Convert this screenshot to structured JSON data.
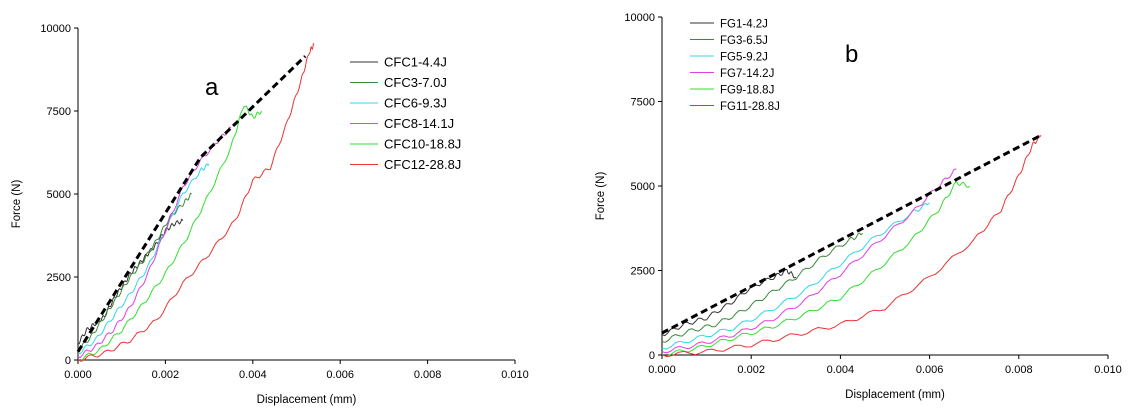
{
  "chart_data": [
    {
      "type": "line",
      "panel_label": "a",
      "xlabel": "Displacement (mm)",
      "ylabel": "Force (N)",
      "xlim": [
        0,
        0.01
      ],
      "ylim": [
        0,
        10000
      ],
      "xticks": [
        "0.000",
        "0.002",
        "0.004",
        "0.006",
        "0.008",
        "0.010"
      ],
      "yticks": [
        "0",
        "2500",
        "5000",
        "7500",
        "10000"
      ],
      "legend_position": "top-right",
      "series": [
        {
          "name": "CFC1-4.4J",
          "color": "#333333",
          "x": [
            0.0,
            0.0002,
            0.0004,
            0.0006,
            0.0008,
            0.001,
            0.0012,
            0.0014,
            0.0016,
            0.0018,
            0.002,
            0.0022,
            0.0024
          ],
          "y": [
            500,
            900,
            1100,
            1300,
            1800,
            2200,
            2600,
            2900,
            3200,
            3500,
            3900,
            4100,
            4200
          ]
        },
        {
          "name": "CFC3-7.0J",
          "color": "#3a8a3a",
          "x": [
            0.0,
            0.0003,
            0.0006,
            0.0009,
            0.0012,
            0.0015,
            0.0018,
            0.0021,
            0.0024,
            0.0026
          ],
          "y": [
            300,
            700,
            1300,
            1900,
            2500,
            3000,
            3600,
            4300,
            4700,
            5000
          ]
        },
        {
          "name": "CFC6-9.3J",
          "color": "#33d6e6",
          "x": [
            0.0,
            0.0004,
            0.0008,
            0.0012,
            0.0016,
            0.002,
            0.0024,
            0.0028,
            0.003
          ],
          "y": [
            200,
            600,
            1300,
            2000,
            2800,
            3900,
            5000,
            5700,
            5900
          ]
        },
        {
          "name": "CFC8-14.1J",
          "color": "#e040e0",
          "x": [
            0.0,
            0.0004,
            0.0008,
            0.0012,
            0.0016,
            0.002,
            0.0024,
            0.0028,
            0.0032,
            0.0035
          ],
          "y": [
            100,
            400,
            900,
            1600,
            2600,
            3900,
            5200,
            6000,
            6600,
            7000
          ]
        },
        {
          "name": "CFC10-18.8J",
          "color": "#33dd33",
          "x": [
            0.0,
            0.0005,
            0.001,
            0.0015,
            0.002,
            0.0025,
            0.003,
            0.0035,
            0.0038,
            0.004,
            0.0042
          ],
          "y": [
            0,
            300,
            900,
            1700,
            2600,
            3700,
            5000,
            6400,
            7700,
            7300,
            7500
          ]
        },
        {
          "name": "CFC12-28.8J",
          "color": "#ee3333",
          "x": [
            0.0,
            0.0006,
            0.0012,
            0.0018,
            0.0024,
            0.003,
            0.0036,
            0.004,
            0.0044,
            0.0048,
            0.0051,
            0.0053,
            0.0054
          ],
          "y": [
            0,
            200,
            600,
            1200,
            2300,
            3200,
            4200,
            5400,
            5800,
            7200,
            8400,
            9300,
            9500
          ]
        }
      ],
      "fit_lines": [
        {
          "x": [
            0.0,
            0.0028,
            0.0052
          ],
          "y": [
            250,
            6100,
            9150
          ],
          "color": "#000000",
          "dashed": true
        }
      ]
    },
    {
      "type": "line",
      "panel_label": "b",
      "xlabel": "Displacement (mm)",
      "ylabel": "Force (N)",
      "xlim": [
        0,
        0.01
      ],
      "ylim": [
        0,
        10000
      ],
      "xticks": [
        "0.000",
        "0.002",
        "0.004",
        "0.006",
        "0.008",
        "0.010"
      ],
      "yticks": [
        "0",
        "2500",
        "5000",
        "7500",
        "10000"
      ],
      "legend_position": "top-left",
      "series": [
        {
          "name": "FG1-4.2J",
          "color": "#333333",
          "x": [
            0.0,
            0.0005,
            0.001,
            0.0015,
            0.002,
            0.0025,
            0.0028,
            0.003
          ],
          "y": [
            600,
            900,
            1100,
            1500,
            2000,
            2300,
            2500,
            2300
          ]
        },
        {
          "name": "FG3-6.5J",
          "color": "#3a8a3a",
          "x": [
            0.0,
            0.0006,
            0.0012,
            0.0018,
            0.0024,
            0.003,
            0.0036,
            0.0042,
            0.0045
          ],
          "y": [
            400,
            700,
            900,
            1300,
            1800,
            2300,
            2900,
            3400,
            3600
          ]
        },
        {
          "name": "FG5-9.2J",
          "color": "#33d6e6",
          "x": [
            0.0,
            0.0008,
            0.0016,
            0.0024,
            0.0032,
            0.004,
            0.0048,
            0.0056,
            0.006
          ],
          "y": [
            200,
            500,
            800,
            1300,
            1900,
            2700,
            3500,
            4200,
            4500
          ]
        },
        {
          "name": "FG7-14.2J",
          "color": "#e040e0",
          "x": [
            0.0,
            0.0008,
            0.0016,
            0.0024,
            0.0032,
            0.004,
            0.0048,
            0.0056,
            0.0062,
            0.0066
          ],
          "y": [
            100,
            300,
            600,
            1000,
            1600,
            2400,
            3300,
            4200,
            5000,
            5500
          ]
        },
        {
          "name": "FG9-18.8J",
          "color": "#33dd33",
          "x": [
            0.0,
            0.0008,
            0.0016,
            0.0024,
            0.0032,
            0.004,
            0.0048,
            0.0056,
            0.0062,
            0.0066,
            0.0069
          ],
          "y": [
            0,
            200,
            500,
            800,
            1200,
            1700,
            2500,
            3400,
            4300,
            5100,
            5000
          ]
        },
        {
          "name": "FG11-28.8J",
          "color": "#ee3333",
          "x": [
            0.0,
            0.001,
            0.002,
            0.003,
            0.004,
            0.005,
            0.006,
            0.007,
            0.0076,
            0.008,
            0.0083,
            0.0085
          ],
          "y": [
            0,
            100,
            300,
            600,
            900,
            1400,
            2300,
            3400,
            4300,
            5300,
            6200,
            6500
          ]
        }
      ],
      "fit_lines": [
        {
          "x": [
            0.0,
            0.0085
          ],
          "y": [
            650,
            6500
          ],
          "color": "#000000",
          "dashed": true
        }
      ]
    }
  ]
}
